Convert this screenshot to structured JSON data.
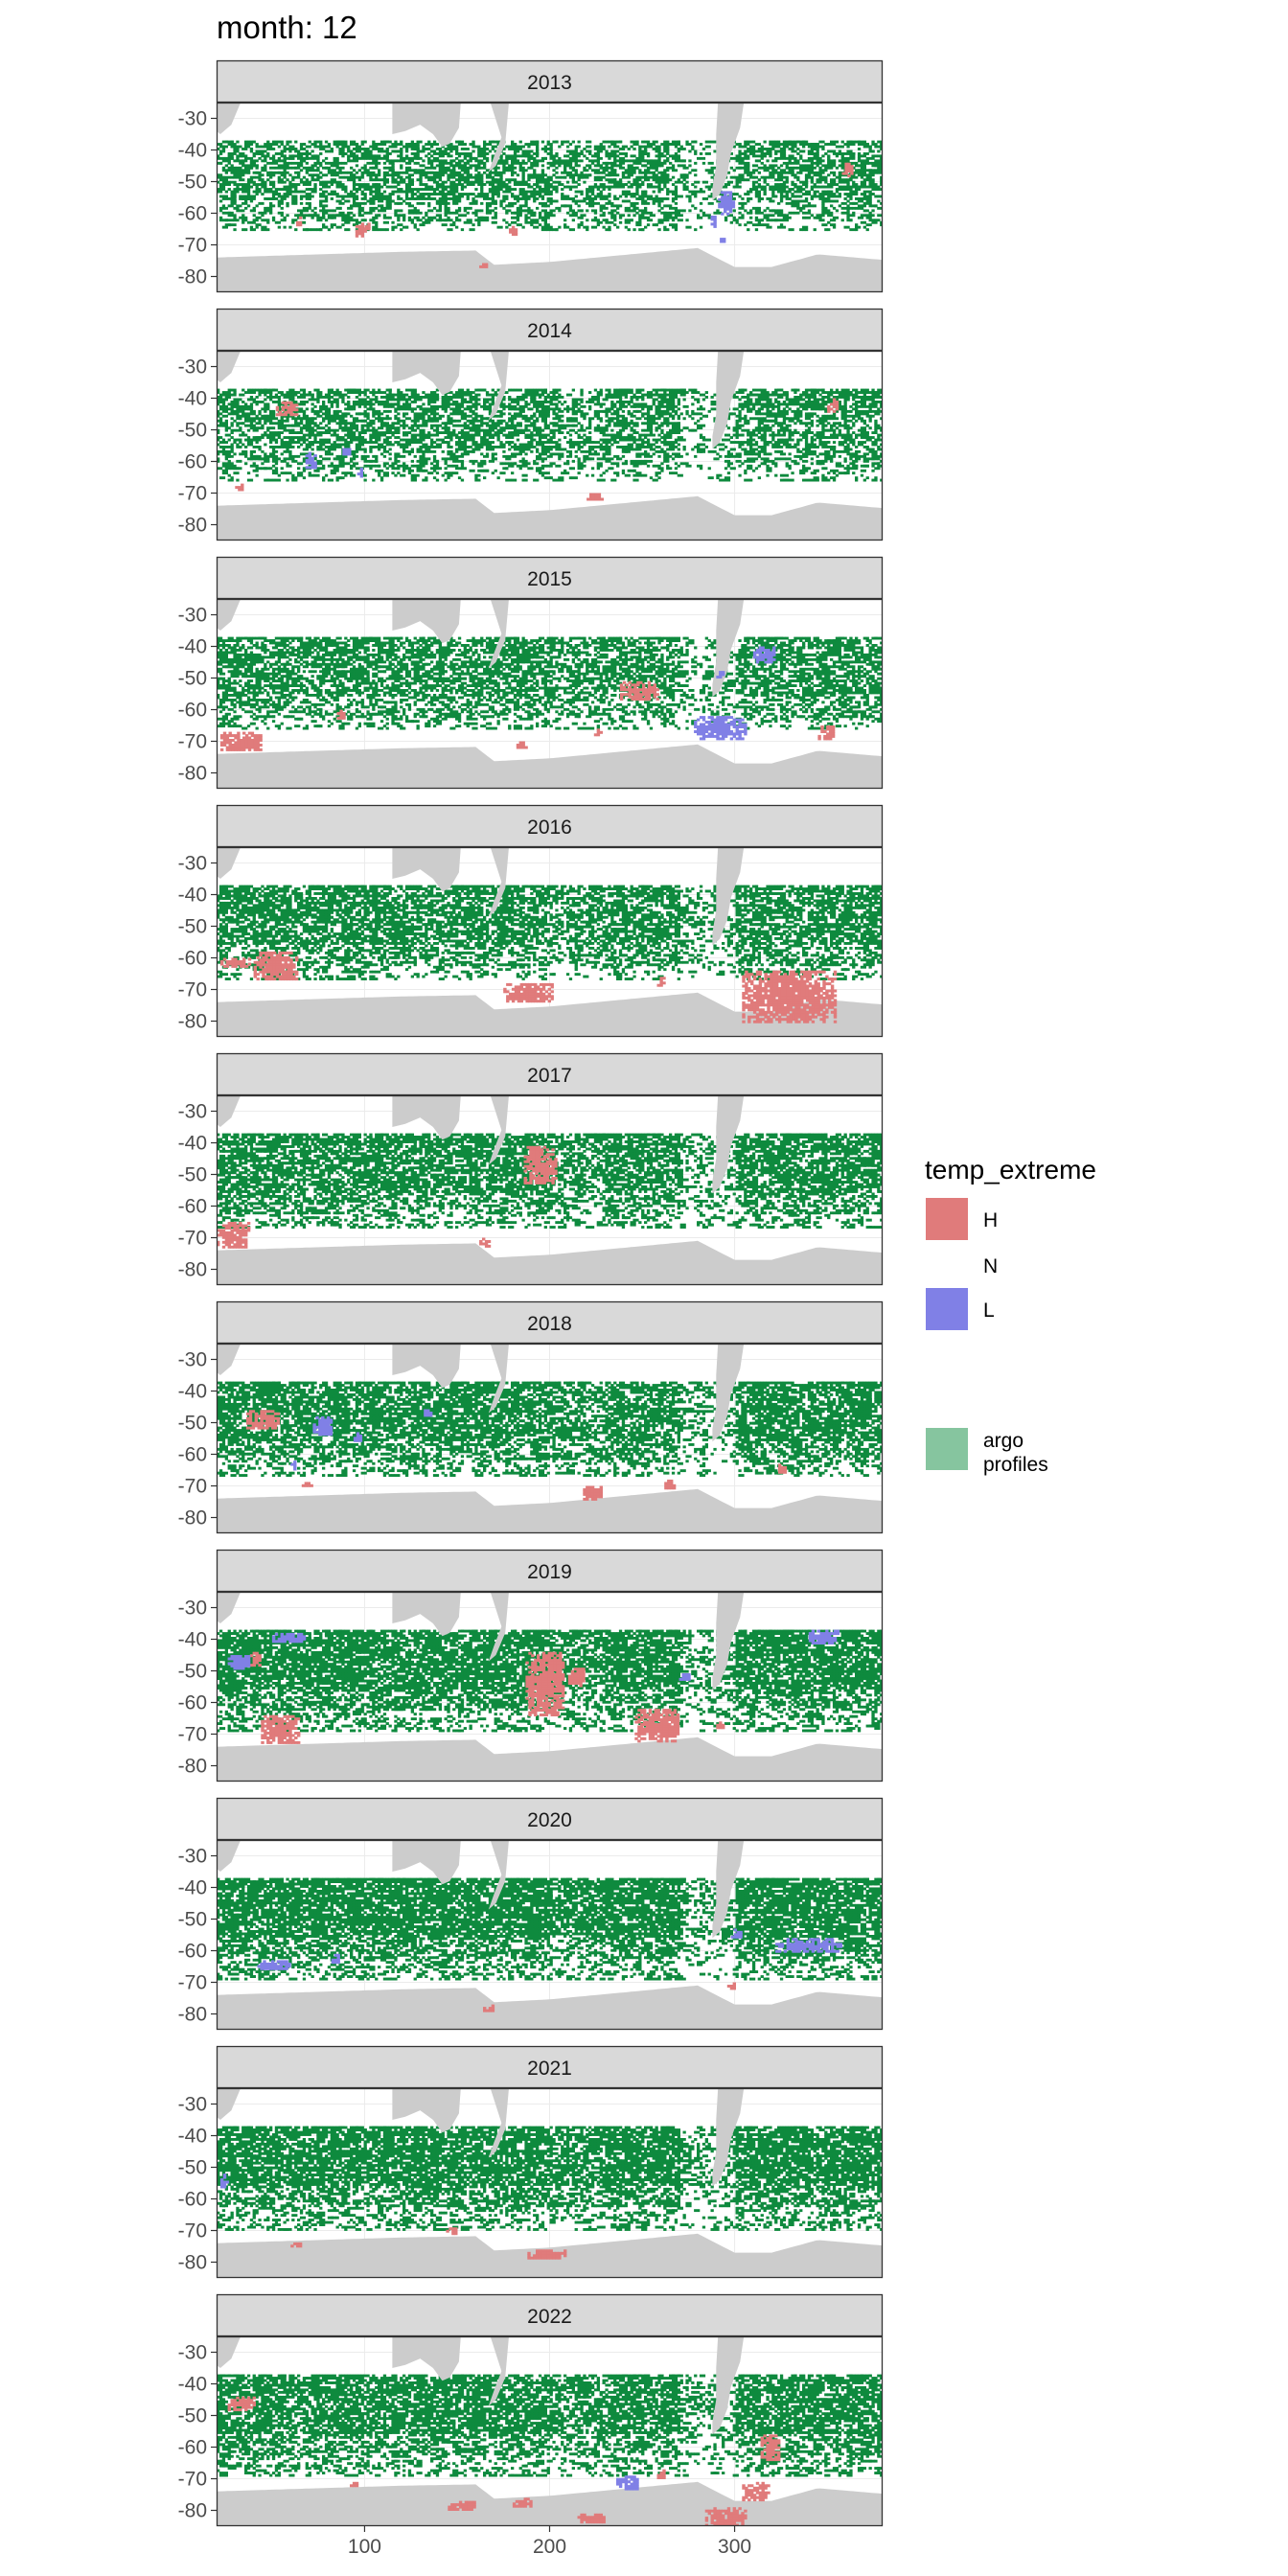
{
  "chart_data": {
    "type": "heatmap",
    "title": "month: 12",
    "xlabel": "",
    "ylabel": "",
    "xlim": [
      20,
      380
    ],
    "ylim": [
      -85,
      -25
    ],
    "x_ticks": [
      100,
      200,
      300
    ],
    "x_tick_labels": [
      "100",
      "200",
      "300"
    ],
    "y_ticks": [
      -30,
      -40,
      -50,
      -60,
      -70,
      -80
    ],
    "y_tick_labels": [
      "-30",
      "-40",
      "-50",
      "-60",
      "-70",
      "-80"
    ],
    "grid": true,
    "legend": {
      "position": "right",
      "title": "temp_extreme",
      "entries": [
        {
          "key": "H",
          "label": "H",
          "color": "#e07b7b"
        },
        {
          "key": "N",
          "label": "N",
          "color": null
        },
        {
          "key": "L",
          "label": "L",
          "color": "#8080e6"
        },
        {
          "key": "argo",
          "label": "argo profiles",
          "color": "#86c59f"
        }
      ]
    },
    "colors": {
      "H": "#e07b7b",
      "L": "#8080e6",
      "argo": "#0e8a3e",
      "land": "#cccccc",
      "strip": "#d9d9d9",
      "grid": "#ebebeb"
    },
    "panels": [
      {
        "label": "2013",
        "H": [
          [
            95,
            -63,
            5,
            4
          ],
          [
            178,
            -64,
            4,
            3
          ],
          [
            162,
            -75,
            4,
            2
          ],
          [
            358,
            -44,
            6,
            4
          ],
          [
            63,
            -61,
            3,
            3
          ],
          [
            100,
            -63,
            3,
            2
          ]
        ],
        "L": [
          [
            291,
            -53,
            8,
            7
          ],
          [
            287,
            -60,
            3,
            4
          ],
          [
            292,
            -67,
            3,
            2
          ]
        ],
        "argo_density": 0.5,
        "argo_south": -65
      },
      {
        "label": "2014",
        "H": [
          [
            52,
            -41,
            12,
            4
          ],
          [
            220,
            -70,
            8,
            2
          ],
          [
            350,
            -40,
            6,
            4
          ],
          [
            30,
            -67,
            4,
            2
          ]
        ],
        "L": [
          [
            68,
            -57,
            6,
            5
          ],
          [
            88,
            -55,
            4,
            3
          ],
          [
            96,
            -62,
            3,
            3
          ]
        ],
        "argo_density": 0.52,
        "argo_south": -66
      },
      {
        "label": "2015",
        "H": [
          [
            22,
            -67,
            22,
            6
          ],
          [
            238,
            -51,
            20,
            6
          ],
          [
            85,
            -60,
            4,
            3
          ],
          [
            182,
            -70,
            6,
            2
          ],
          [
            224,
            -66,
            4,
            2
          ],
          [
            345,
            -65,
            8,
            4
          ]
        ],
        "L": [
          [
            278,
            -62,
            28,
            7
          ],
          [
            310,
            -40,
            12,
            5
          ],
          [
            290,
            -47,
            4,
            3
          ]
        ],
        "argo_density": 0.56,
        "argo_south": -66
      },
      {
        "label": "2016",
        "H": [
          [
            22,
            -60,
            16,
            3
          ],
          [
            40,
            -58,
            24,
            9
          ],
          [
            175,
            -68,
            26,
            6
          ],
          [
            304,
            -64,
            50,
            16
          ],
          [
            258,
            -66,
            4,
            3
          ]
        ],
        "L": [],
        "argo_density": 0.6,
        "argo_south": -67
      },
      {
        "label": "2017",
        "H": [
          [
            20,
            -65,
            18,
            8
          ],
          [
            186,
            -41,
            18,
            12
          ],
          [
            162,
            -70,
            6,
            3
          ]
        ],
        "L": [],
        "argo_density": 0.64,
        "argo_south": -67
      },
      {
        "label": "2018",
        "H": [
          [
            36,
            -46,
            18,
            6
          ],
          [
            218,
            -70,
            10,
            4
          ],
          [
            262,
            -68,
            5,
            3
          ],
          [
            322,
            -63,
            5,
            3
          ],
          [
            66,
            -68,
            6,
            2
          ]
        ],
        "L": [
          [
            72,
            -48,
            10,
            6
          ],
          [
            94,
            -53,
            4,
            3
          ],
          [
            132,
            -45,
            4,
            3
          ],
          [
            60,
            -62,
            3,
            3
          ]
        ],
        "argo_density": 0.66,
        "argo_south": -67
      },
      {
        "label": "2019",
        "H": [
          [
            187,
            -44,
            20,
            20
          ],
          [
            44,
            -64,
            20,
            9
          ],
          [
            246,
            -62,
            24,
            10
          ],
          [
            210,
            -49,
            8,
            6
          ],
          [
            290,
            -66,
            4,
            2
          ],
          [
            38,
            -44,
            6,
            4
          ]
        ],
        "L": [
          [
            26,
            -45,
            12,
            4
          ],
          [
            50,
            -38,
            18,
            3
          ],
          [
            340,
            -37,
            16,
            4
          ],
          [
            270,
            -50,
            5,
            3
          ]
        ],
        "argo_density": 0.72,
        "argo_south": -69
      },
      {
        "label": "2020",
        "H": [
          [
            164,
            -77,
            6,
            2
          ],
          [
            296,
            -70,
            5,
            2
          ]
        ],
        "L": [
          [
            42,
            -63,
            18,
            3
          ],
          [
            322,
            -56,
            36,
            4
          ],
          [
            298,
            -53,
            5,
            3
          ],
          [
            82,
            -61,
            4,
            3
          ]
        ],
        "argo_density": 0.74,
        "argo_south": -69
      },
      {
        "label": "2021",
        "H": [
          [
            188,
            -76,
            20,
            3
          ],
          [
            144,
            -69,
            6,
            2
          ],
          [
            60,
            -73,
            6,
            2
          ]
        ],
        "L": [
          [
            22,
            -52,
            4,
            4
          ]
        ],
        "argo_density": 0.72,
        "argo_south": -70
      },
      {
        "label": "2022",
        "H": [
          [
            26,
            -44,
            14,
            4
          ],
          [
            145,
            -77,
            14,
            3
          ],
          [
            180,
            -76,
            10,
            3
          ],
          [
            215,
            -81,
            14,
            3
          ],
          [
            284,
            -79,
            22,
            6
          ],
          [
            304,
            -71,
            14,
            6
          ],
          [
            314,
            -56,
            10,
            8
          ],
          [
            92,
            -71,
            4,
            2
          ],
          [
            258,
            -67,
            4,
            3
          ]
        ],
        "L": [
          [
            236,
            -69,
            12,
            4
          ]
        ],
        "argo_density": 0.66,
        "argo_south": -69
      }
    ]
  }
}
